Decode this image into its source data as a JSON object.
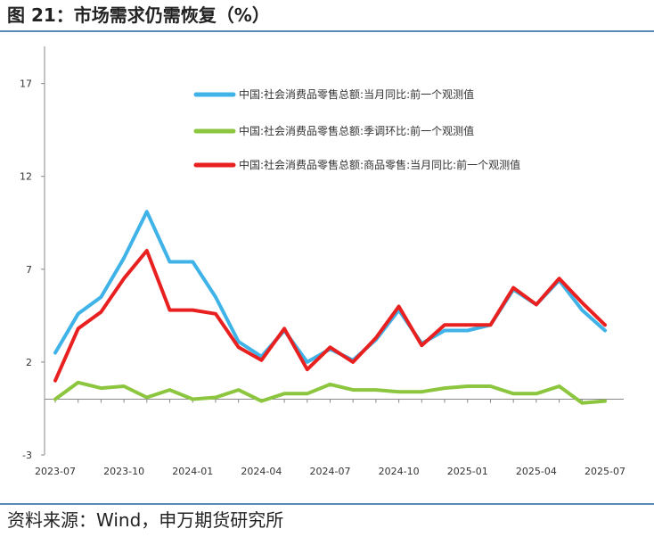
{
  "header": {
    "title": "图 21：市场需求仍需恢复（%）"
  },
  "footer": {
    "source": "资料来源：Wind，申万期货研究所"
  },
  "chart_data": {
    "type": "line",
    "title": "",
    "xlabel": "",
    "ylabel": "",
    "ylim": [
      -3,
      19
    ],
    "yticks": [
      -3,
      2,
      7,
      12,
      17
    ],
    "x": [
      "2023-07",
      "2023-08",
      "2023-09",
      "2023-10",
      "2023-11",
      "2023-12",
      "2024-01",
      "2024-02",
      "2024-03",
      "2024-04",
      "2024-05",
      "2024-06",
      "2024-07",
      "2024-08",
      "2024-09",
      "2024-10",
      "2024-11",
      "2024-12",
      "2025-01",
      "2025-02",
      "2025-03",
      "2025-04",
      "2025-05",
      "2025-06",
      "2025-07"
    ],
    "xtick_labels": [
      "2023-07",
      "2023-10",
      "2024-01",
      "2024-04",
      "2024-07",
      "2024-10",
      "2025-01",
      "2025-04",
      "2025-07"
    ],
    "grid": false,
    "legend_position": "top",
    "series": [
      {
        "name": "中国:社会消费品零售总额:当月同比:前一个观测值",
        "color": "#3fb3e8",
        "values": [
          2.5,
          4.6,
          5.5,
          7.6,
          10.1,
          7.4,
          7.4,
          5.5,
          3.1,
          2.3,
          3.7,
          2.0,
          2.7,
          2.1,
          3.2,
          4.8,
          3.0,
          3.7,
          3.7,
          4.0,
          5.9,
          5.1,
          6.4,
          4.8,
          3.7
        ]
      },
      {
        "name": "中国:社会消费品零售总额:季调环比:前一个观测值",
        "color": "#8cc63f",
        "values": [
          0.0,
          0.9,
          0.6,
          0.7,
          0.1,
          0.5,
          0.0,
          0.1,
          0.5,
          -0.1,
          0.3,
          0.3,
          0.8,
          0.5,
          0.5,
          0.4,
          0.4,
          0.6,
          0.7,
          0.7,
          0.3,
          0.3,
          0.7,
          -0.2,
          -0.1
        ]
      },
      {
        "name": "中国:社会消费品零售总额:商品零售:当月同比:前一个观测值",
        "color": "#e82020",
        "values": [
          1.0,
          3.8,
          4.7,
          6.5,
          8.0,
          4.8,
          4.8,
          4.6,
          2.8,
          2.1,
          3.8,
          1.6,
          2.8,
          2.0,
          3.3,
          5.0,
          2.9,
          4.0,
          4.0,
          4.0,
          6.0,
          5.1,
          6.5,
          5.2,
          4.0
        ]
      }
    ]
  }
}
